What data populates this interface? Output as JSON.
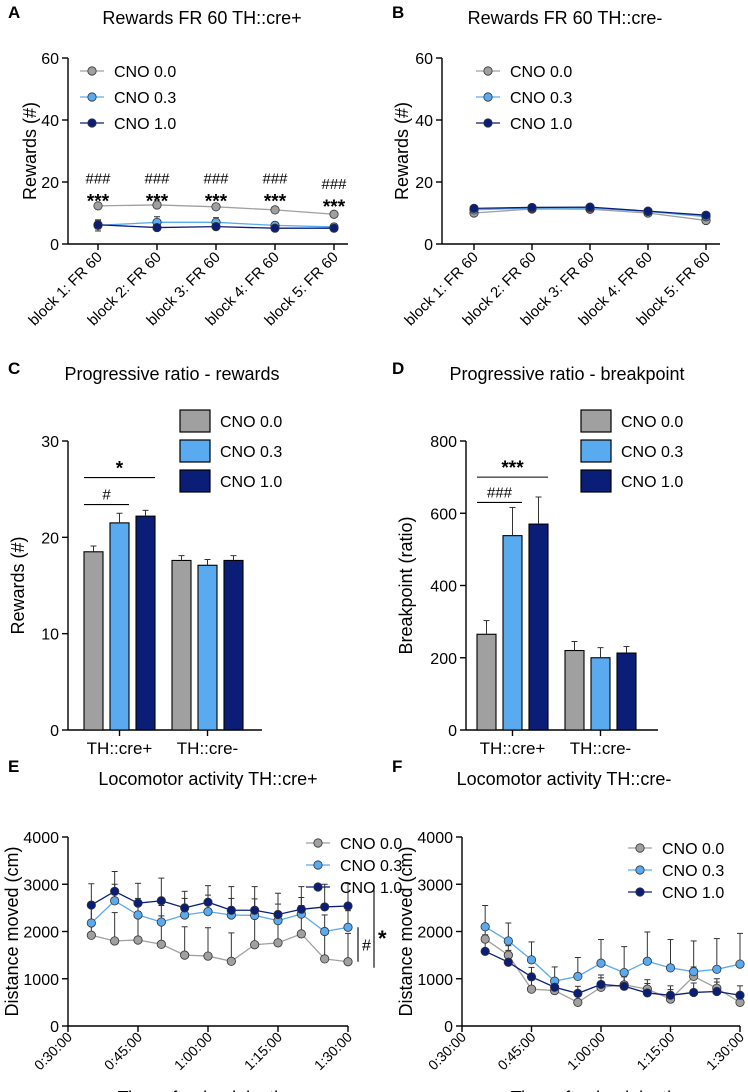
{
  "colors": {
    "cno00": "#a0a0a0",
    "cno03": "#5aaaf0",
    "cno10": "#0a1e78"
  },
  "legend_labels": [
    "CNO 0.0",
    "CNO 0.3",
    "CNO 1.0"
  ],
  "chart_data": [
    {
      "panel_label": "A",
      "type": "line",
      "title": "Rewards FR 60 TH::cre+",
      "ylabel": "Rewards (#)",
      "xlabel": "",
      "ylim": [
        0,
        60
      ],
      "yticks": [
        "0",
        "20",
        "40",
        "60"
      ],
      "categories": [
        "block 1: FR 60",
        "block 2: FR 60",
        "block 3: FR 60",
        "block 4: FR 60",
        "block 5: FR 60"
      ],
      "series": [
        {
          "name": "CNO 0.0",
          "values": [
            12.3,
            12.6,
            12.0,
            11.0,
            9.6
          ],
          "errors": [
            0.6,
            0.6,
            0.6,
            0.6,
            0.6
          ]
        },
        {
          "name": "CNO 0.3",
          "values": [
            6.0,
            7.0,
            7.0,
            6.0,
            5.5
          ],
          "errors": [
            1.8,
            1.8,
            1.5,
            1.0,
            1.0
          ]
        },
        {
          "name": "CNO 1.0",
          "values": [
            6.2,
            5.3,
            5.6,
            5.1,
            5.1
          ],
          "errors": [
            1.3,
            1.0,
            1.0,
            0.8,
            0.8
          ]
        }
      ],
      "annotations": [
        {
          "text": "###",
          "category": 0,
          "y": 21.5
        },
        {
          "text": "***",
          "category": 0,
          "y": 15.6
        },
        {
          "text": "###",
          "category": 1,
          "y": 21.5
        },
        {
          "text": "***",
          "category": 1,
          "y": 15.6
        },
        {
          "text": "###",
          "category": 2,
          "y": 21.5
        },
        {
          "text": "***",
          "category": 2,
          "y": 15.6
        },
        {
          "text": "###",
          "category": 3,
          "y": 21.5
        },
        {
          "text": "***",
          "category": 3,
          "y": 15.6
        },
        {
          "text": "###",
          "category": 4,
          "y": 19.6
        },
        {
          "text": "***",
          "category": 4,
          "y": 13.8
        }
      ]
    },
    {
      "panel_label": "B",
      "type": "line",
      "title": "Rewards FR 60 TH::cre-",
      "ylabel": "Rewards (#)",
      "xlabel": "",
      "ylim": [
        0,
        60
      ],
      "yticks": [
        "0",
        "20",
        "40",
        "60"
      ],
      "categories": [
        "block 1: FR 60",
        "block 2: FR 60",
        "block 3: FR 60",
        "block 4: FR 60",
        "block 5: FR 60"
      ],
      "series": [
        {
          "name": "CNO 0.0",
          "values": [
            10.0,
            11.3,
            11.2,
            10.0,
            7.6
          ],
          "errors": [
            0.5,
            0.5,
            0.5,
            0.5,
            0.5
          ]
        },
        {
          "name": "CNO 0.3",
          "values": [
            11.0,
            11.6,
            11.6,
            10.5,
            8.8
          ],
          "errors": [
            0.5,
            0.5,
            0.5,
            0.5,
            0.5
          ]
        },
        {
          "name": "CNO 1.0",
          "values": [
            11.5,
            11.8,
            11.9,
            10.6,
            9.3
          ],
          "errors": [
            0.5,
            0.5,
            0.5,
            0.5,
            0.5
          ]
        }
      ],
      "annotations": []
    },
    {
      "panel_label": "C",
      "type": "bar",
      "title": "Progressive ratio - rewards",
      "ylabel": "Rewards (#)",
      "xlabel": "",
      "ylim": [
        0,
        30
      ],
      "yticks": [
        "0",
        "10",
        "20",
        "30"
      ],
      "categories": [
        "TH::cre+",
        "TH::cre-"
      ],
      "series": [
        {
          "name": "CNO 0.0",
          "values": [
            18.5,
            17.6
          ],
          "errors": [
            0.6,
            0.5
          ]
        },
        {
          "name": "CNO 0.3",
          "values": [
            21.5,
            17.1
          ],
          "errors": [
            1.0,
            0.6
          ]
        },
        {
          "name": "CNO 1.0",
          "values": [
            22.2,
            17.6
          ],
          "errors": [
            0.6,
            0.5
          ]
        }
      ],
      "significance": [
        {
          "text": "*",
          "from_series": 0,
          "to_series": 2,
          "y": 26.2
        },
        {
          "text": "#",
          "from_series": 0,
          "to_series": 1,
          "y": 23.4
        }
      ]
    },
    {
      "panel_label": "D",
      "type": "bar",
      "title": "Progressive ratio - breakpoint",
      "ylabel": "Breakpoint (ratio)",
      "xlabel": "",
      "ylim": [
        0,
        800
      ],
      "yticks": [
        "0",
        "200",
        "400",
        "600",
        "800"
      ],
      "categories": [
        "TH::cre+",
        "TH::cre-"
      ],
      "series": [
        {
          "name": "CNO 0.0",
          "values": [
            265,
            220
          ],
          "errors": [
            38,
            25
          ]
        },
        {
          "name": "CNO 0.3",
          "values": [
            538,
            200
          ],
          "errors": [
            78,
            28
          ]
        },
        {
          "name": "CNO 1.0",
          "values": [
            570,
            213
          ],
          "errors": [
            75,
            18
          ]
        }
      ],
      "significance": [
        {
          "text": "***",
          "from_series": 0,
          "to_series": 2,
          "y": 700
        },
        {
          "text": "###",
          "from_series": 0,
          "to_series": 1,
          "y": 630
        }
      ]
    },
    {
      "panel_label": "E",
      "type": "line",
      "title": "Locomotor activity TH::cre+",
      "ylabel": "Distance moved (cm)",
      "xlabel": "Time after i.p. injection",
      "ylim": [
        0,
        4000
      ],
      "yticks": [
        "0",
        "1000",
        "2000",
        "3000",
        "4000"
      ],
      "xlim": [
        30,
        90
      ],
      "xticks": [
        "0:30:00",
        "0:45:00",
        "1:00:00",
        "1:15:00",
        "1:30:00"
      ],
      "x": [
        35,
        40,
        45,
        50,
        55,
        60,
        65,
        70,
        75,
        80,
        85,
        90
      ],
      "series": [
        {
          "name": "CNO 0.0",
          "values": [
            1920,
            1800,
            1820,
            1730,
            1500,
            1480,
            1370,
            1720,
            1760,
            1950,
            1420,
            1360
          ],
          "errors": [
            600,
            600,
            600,
            600,
            600,
            600,
            600,
            600,
            600,
            600,
            600,
            600
          ]
        },
        {
          "name": "CNO 0.3",
          "values": [
            2180,
            2650,
            2350,
            2200,
            2350,
            2420,
            2350,
            2340,
            2230,
            2370,
            2000,
            2090
          ],
          "errors": [
            350,
            350,
            350,
            350,
            350,
            350,
            350,
            350,
            350,
            350,
            350,
            350
          ]
        },
        {
          "name": "CNO 1.0",
          "values": [
            2560,
            2850,
            2600,
            2650,
            2500,
            2620,
            2450,
            2450,
            2360,
            2470,
            2520,
            2540
          ],
          "errors": [
            450,
            420,
            420,
            480,
            350,
            350,
            500,
            500,
            450,
            480,
            480,
            480
          ]
        }
      ],
      "significance": [
        {
          "text": "#",
          "series_a": 0,
          "series_b": 1
        },
        {
          "text": "*",
          "series_a": 0,
          "series_b": 2
        }
      ]
    },
    {
      "panel_label": "F",
      "type": "line",
      "title": "Locomotor activity TH::cre-",
      "ylabel": "Distance moved (cm)",
      "xlabel": "Time after i.p. injection",
      "ylim": [
        0,
        4000
      ],
      "yticks": [
        "0",
        "1000",
        "2000",
        "3000",
        "4000"
      ],
      "xlim": [
        30,
        90
      ],
      "xticks": [
        "0:30:00",
        "0:45:00",
        "1:00:00",
        "1:15:00",
        "1:30:00"
      ],
      "x": [
        35,
        40,
        45,
        50,
        55,
        60,
        65,
        70,
        75,
        80,
        85,
        90
      ],
      "series": [
        {
          "name": "CNO 0.0",
          "values": [
            1840,
            1500,
            780,
            750,
            500,
            820,
            870,
            780,
            570,
            1050,
            800,
            500
          ],
          "errors": [
            200,
            200,
            200,
            150,
            150,
            200,
            200,
            200,
            200,
            200,
            200,
            200
          ]
        },
        {
          "name": "CNO 0.3",
          "values": [
            2100,
            1800,
            1400,
            950,
            1050,
            1330,
            1130,
            1370,
            1230,
            1150,
            1200,
            1310
          ],
          "errors": [
            450,
            380,
            380,
            300,
            400,
            500,
            550,
            620,
            600,
            650,
            650,
            650
          ]
        },
        {
          "name": "CNO 1.0",
          "values": [
            1580,
            1350,
            1040,
            820,
            690,
            880,
            840,
            700,
            650,
            710,
            730,
            650
          ],
          "errors": [
            350,
            250,
            200,
            150,
            150,
            200,
            200,
            200,
            200,
            200,
            200,
            200
          ]
        }
      ]
    }
  ]
}
